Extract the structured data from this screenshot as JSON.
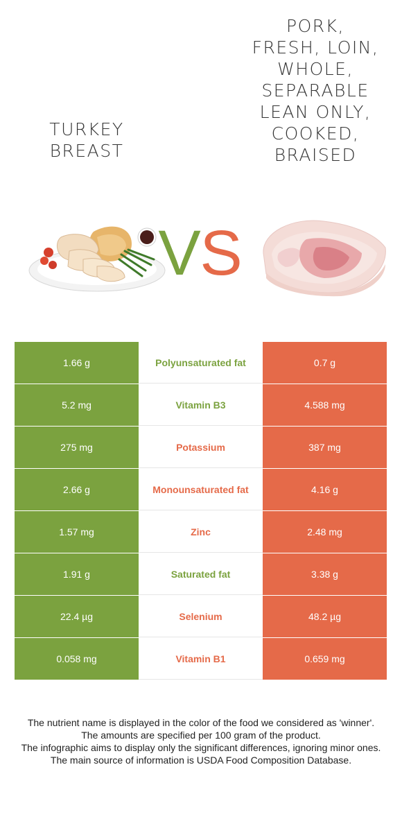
{
  "food_left": {
    "name": "Turkey breast",
    "color": "#7ba23f"
  },
  "food_right": {
    "name": "Pork, fresh, loin, whole, separable lean only, cooked, braised",
    "color": "#e56a49"
  },
  "vs_label": {
    "v": "V",
    "s": "S"
  },
  "nutrients": [
    {
      "left": "1.66 g",
      "name": "Polyunsaturated fat",
      "right": "0.7 g",
      "winner": "left"
    },
    {
      "left": "5.2 mg",
      "name": "Vitamin B3",
      "right": "4.588 mg",
      "winner": "left"
    },
    {
      "left": "275 mg",
      "name": "Potassium",
      "right": "387 mg",
      "winner": "right"
    },
    {
      "left": "2.66 g",
      "name": "Monounsaturated fat",
      "right": "4.16 g",
      "winner": "right"
    },
    {
      "left": "1.57 mg",
      "name": "Zinc",
      "right": "2.48 mg",
      "winner": "right"
    },
    {
      "left": "1.91 g",
      "name": "Saturated fat",
      "right": "3.38 g",
      "winner": "left"
    },
    {
      "left": "22.4 µg",
      "name": "Selenium",
      "right": "48.2 µg",
      "winner": "right"
    },
    {
      "left": "0.058 mg",
      "name": "Vitamin B1",
      "right": "0.659 mg",
      "winner": "right"
    }
  ],
  "footer": {
    "line1": "The nutrient name is displayed in the color of the food we considered as 'winner'.",
    "line2": "The amounts are specified per 100 gram of the product.",
    "line3": "The infographic aims to display only the significant differences, ignoring minor ones.",
    "line4": "The main source of information is USDA Food Composition Database."
  }
}
